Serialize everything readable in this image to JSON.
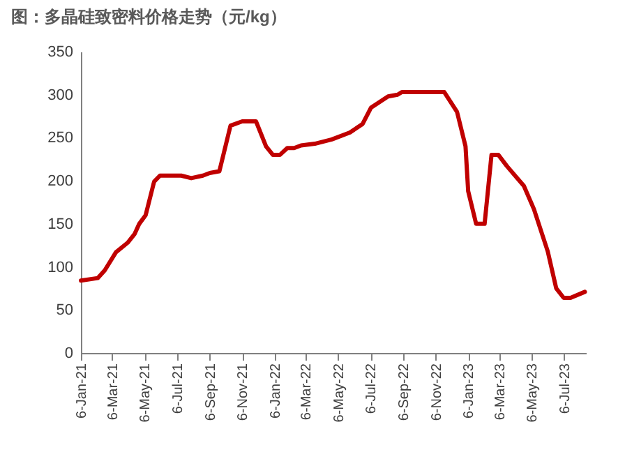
{
  "chart_data": {
    "type": "line",
    "title": "图：多晶硅致密料价格走势（元/kg）",
    "x": [
      "2021-01-06",
      "2021-02-07",
      "2021-02-20",
      "2021-03-13",
      "2021-04-04",
      "2021-04-17",
      "2021-04-26",
      "2021-05-08",
      "2021-05-24",
      "2021-06-04",
      "2021-07-14",
      "2021-08-02",
      "2021-08-24",
      "2021-09-06",
      "2021-09-24",
      "2021-10-15",
      "2021-11-06",
      "2021-12-02",
      "2021-12-21",
      "2022-01-03",
      "2022-01-16",
      "2022-01-30",
      "2022-02-12",
      "2022-02-25",
      "2022-03-23",
      "2022-04-24",
      "2022-05-28",
      "2022-06-21",
      "2022-07-07",
      "2022-08-08",
      "2022-08-26",
      "2022-09-03",
      "2022-11-22",
      "2022-12-16",
      "2023-01-01",
      "2023-01-06",
      "2023-01-21",
      "2023-02-06",
      "2023-02-19",
      "2023-03-04",
      "2023-03-20",
      "2023-04-21",
      "2023-05-10",
      "2023-06-05",
      "2023-06-21",
      "2023-07-05",
      "2023-07-18",
      "2023-08-14"
    ],
    "series": [
      {
        "color": "#c00000",
        "values": [
          84,
          87,
          96,
          117,
          128,
          138,
          150,
          160,
          199,
          206,
          206,
          203,
          206,
          209,
          211,
          264,
          269,
          269,
          240,
          230,
          230,
          238,
          238,
          241,
          243,
          248,
          256,
          266,
          285,
          298,
          300,
          303,
          303,
          280,
          240,
          188,
          150,
          150,
          230,
          230,
          217,
          194,
          167,
          118,
          75,
          64,
          64,
          71
        ]
      }
    ],
    "xlim": [
      "2021-01-06",
      "2023-08-16"
    ],
    "xticks": [
      {
        "value": "2021-01-06",
        "label": "6-Jan-21"
      },
      {
        "value": "2021-03-06",
        "label": "6-Mar-21"
      },
      {
        "value": "2021-05-06",
        "label": "6-May-21"
      },
      {
        "value": "2021-07-06",
        "label": "6-Jul-21"
      },
      {
        "value": "2021-09-06",
        "label": "6-Sep-21"
      },
      {
        "value": "2021-11-06",
        "label": "6-Nov-21"
      },
      {
        "value": "2022-01-06",
        "label": "6-Jan-22"
      },
      {
        "value": "2022-03-06",
        "label": "6-Mar-22"
      },
      {
        "value": "2022-05-06",
        "label": "6-May-22"
      },
      {
        "value": "2022-07-06",
        "label": "6-Jul-22"
      },
      {
        "value": "2022-09-06",
        "label": "6-Sep-22"
      },
      {
        "value": "2022-11-06",
        "label": "6-Nov-22"
      },
      {
        "value": "2023-01-06",
        "label": "6-Jan-23"
      },
      {
        "value": "2023-03-06",
        "label": "6-Mar-23"
      },
      {
        "value": "2023-05-06",
        "label": "6-May-23"
      },
      {
        "value": "2023-07-06",
        "label": "6-Jul-23"
      }
    ],
    "ylim": [
      0,
      350
    ],
    "yticks": [
      0,
      50,
      100,
      150,
      200,
      250,
      300,
      350
    ],
    "grid": false,
    "marker": "none",
    "line_style": "solid"
  }
}
